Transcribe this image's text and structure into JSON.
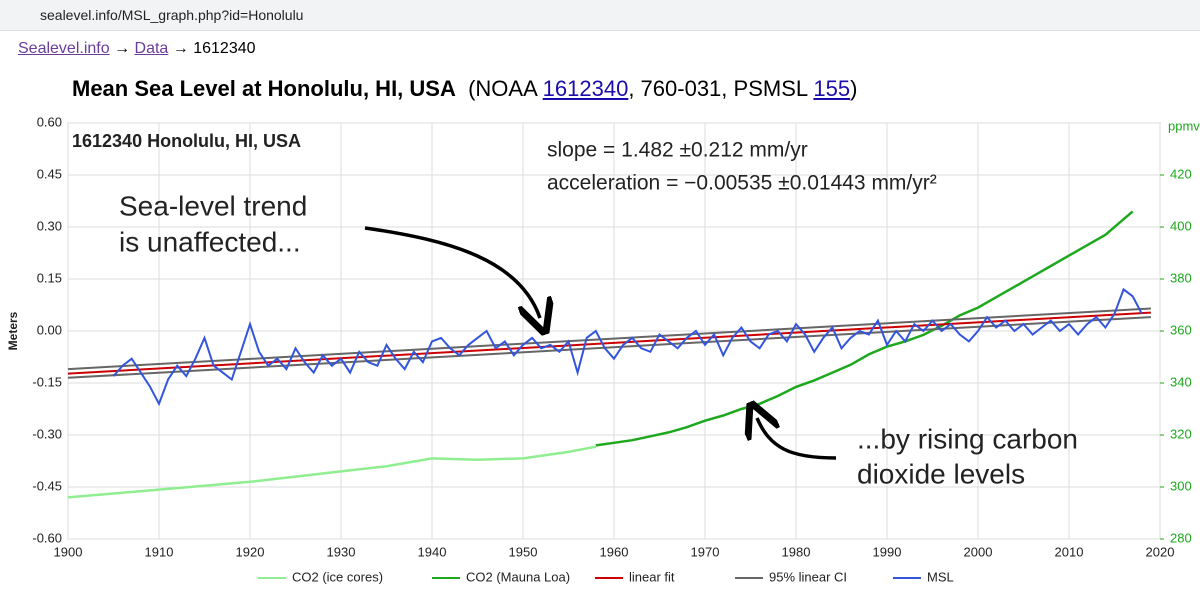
{
  "url": "sealevel.info/MSL_graph.php?id=Honolulu",
  "breadcrumb": {
    "links": [
      "Sealevel.info",
      "Data"
    ],
    "separator": "→",
    "current": "1612340"
  },
  "heading": {
    "main": "Mean Sea Level at Honolulu, HI, USA",
    "parts": [
      "(NOAA ",
      "1612340",
      ", 760-031, PSMSL ",
      "155",
      ")"
    ]
  },
  "chart_data": {
    "type": "line",
    "ylabel": "Meters",
    "y2label": "ppmv",
    "xlim": [
      1900,
      2020
    ],
    "xticks": [
      1900,
      1910,
      1920,
      1930,
      1940,
      1950,
      1960,
      1970,
      1980,
      1990,
      2000,
      2010,
      2020
    ],
    "ylim": [
      -0.6,
      0.6
    ],
    "yticks": [
      {
        "value": 0.6,
        "label": "0.60"
      },
      0.45,
      {
        "value": 0.3,
        "label": "0.30"
      },
      0.15,
      {
        "value": 0,
        "label": "0.00"
      },
      -0.15,
      {
        "value": -0.3,
        "label": "-0.30"
      },
      -0.45,
      {
        "value": -0.6,
        "label": "-0.60"
      }
    ],
    "y2lim": [
      280,
      440
    ],
    "y2ticks": [
      280,
      300,
      320,
      340,
      360,
      380,
      400,
      420
    ],
    "grid": true,
    "annotations": [
      "1612340 Honolulu, HI, USA",
      "slope = 1.482 ±0.212 mm/yr",
      "acceleration = −0.00535 ±0.01443 mm/yr²",
      "Sea-level trend",
      "is unaffected...",
      "...by rising carbon",
      "dioxide levels"
    ],
    "series": [
      {
        "name": "CO2 (ice cores)",
        "color": "#90ee90",
        "axis": "y2",
        "x": [
          1900,
          1905,
          1910,
          1915,
          1920,
          1925,
          1930,
          1935,
          1940,
          1945,
          1950,
          1955,
          1958
        ],
        "values": [
          296,
          297.5,
          299,
          300.5,
          302,
          304,
          306,
          308,
          311,
          310.5,
          311,
          313.5,
          315.5
        ]
      },
      {
        "name": "CO2 (Mauna Loa)",
        "color": "#1ea81e",
        "axis": "y2",
        "x": [
          1958,
          1960,
          1962,
          1964,
          1966,
          1968,
          1970,
          1972,
          1974,
          1976,
          1978,
          1980,
          1982,
          1984,
          1986,
          1988,
          1990,
          1992,
          1994,
          1996,
          1998,
          2000,
          2002,
          2004,
          2006,
          2008,
          2010,
          2012,
          2014,
          2016,
          2017
        ],
        "values": [
          316,
          317,
          318,
          319.5,
          321,
          323,
          325.5,
          327.5,
          330,
          332,
          335,
          338.5,
          341,
          344,
          347,
          351,
          354,
          356,
          358.5,
          362,
          366,
          369,
          373,
          377,
          381,
          385,
          389,
          393,
          397,
          403,
          406
        ]
      },
      {
        "name": "linear fit",
        "color": "#cc0000",
        "x": [
          1900,
          2019
        ],
        "values": [
          -0.123,
          0.053
        ]
      },
      {
        "name": "95% linear CI",
        "color": "#666666",
        "x": [
          1900,
          2019
        ],
        "upper": [
          -0.11,
          0.065
        ],
        "lower": [
          -0.135,
          0.04
        ]
      },
      {
        "name": "MSL",
        "color": "#3355dd",
        "x": [
          1905,
          1906,
          1907,
          1908,
          1909,
          1910,
          1911,
          1912,
          1913,
          1914,
          1915,
          1916,
          1917,
          1918,
          1919,
          1920,
          1921,
          1922,
          1923,
          1924,
          1925,
          1926,
          1927,
          1928,
          1929,
          1930,
          1931,
          1932,
          1933,
          1934,
          1935,
          1936,
          1937,
          1938,
          1939,
          1940,
          1941,
          1942,
          1943,
          1944,
          1945,
          1946,
          1947,
          1948,
          1949,
          1950,
          1951,
          1952,
          1953,
          1954,
          1955,
          1956,
          1957,
          1958,
          1959,
          1960,
          1961,
          1962,
          1963,
          1964,
          1965,
          1966,
          1967,
          1968,
          1969,
          1970,
          1971,
          1972,
          1973,
          1974,
          1975,
          1976,
          1977,
          1978,
          1979,
          1980,
          1981,
          1982,
          1983,
          1984,
          1985,
          1986,
          1987,
          1988,
          1989,
          1990,
          1991,
          1992,
          1993,
          1994,
          1995,
          1996,
          1997,
          1998,
          1999,
          2000,
          2001,
          2002,
          2003,
          2004,
          2005,
          2006,
          2007,
          2008,
          2009,
          2010,
          2011,
          2012,
          2013,
          2014,
          2015,
          2016,
          2017,
          2018
        ],
        "values": [
          -0.13,
          -0.1,
          -0.08,
          -0.12,
          -0.16,
          -0.21,
          -0.14,
          -0.1,
          -0.13,
          -0.08,
          -0.02,
          -0.1,
          -0.12,
          -0.14,
          -0.06,
          0.02,
          -0.06,
          -0.1,
          -0.08,
          -0.11,
          -0.05,
          -0.09,
          -0.12,
          -0.07,
          -0.1,
          -0.08,
          -0.12,
          -0.06,
          -0.09,
          -0.1,
          -0.04,
          -0.08,
          -0.11,
          -0.06,
          -0.09,
          -0.03,
          -0.02,
          -0.05,
          -0.07,
          -0.04,
          -0.02,
          0.0,
          -0.05,
          -0.03,
          -0.07,
          -0.04,
          -0.02,
          -0.05,
          -0.04,
          -0.06,
          -0.03,
          -0.12,
          -0.02,
          0.0,
          -0.05,
          -0.08,
          -0.04,
          -0.02,
          -0.05,
          -0.06,
          -0.01,
          -0.03,
          -0.05,
          -0.02,
          0.0,
          -0.04,
          -0.01,
          -0.07,
          -0.02,
          0.01,
          -0.03,
          -0.05,
          -0.01,
          0.0,
          -0.03,
          0.02,
          -0.01,
          -0.06,
          -0.02,
          0.01,
          -0.05,
          -0.02,
          0.0,
          -0.01,
          0.03,
          -0.04,
          0.0,
          -0.03,
          0.02,
          0.0,
          0.03,
          0.0,
          0.02,
          -0.01,
          -0.03,
          0.0,
          0.04,
          0.01,
          0.03,
          0.0,
          0.02,
          -0.01,
          0.01,
          0.03,
          0.0,
          0.02,
          -0.01,
          0.02,
          0.04,
          0.01,
          0.05,
          0.12,
          0.1,
          0.05
        ]
      }
    ]
  }
}
